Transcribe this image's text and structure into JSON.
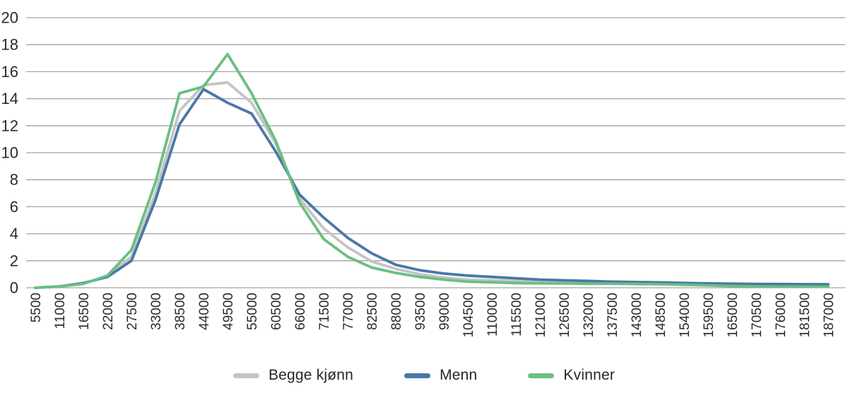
{
  "chart_data": {
    "type": "line",
    "title": "",
    "xlabel": "",
    "ylabel": "",
    "ylim": [
      0,
      20
    ],
    "ytick_step": 2,
    "grid": true,
    "legend_position": "bottom",
    "categories": [
      "5500",
      "11000",
      "16500",
      "22000",
      "27500",
      "33000",
      "38500",
      "44000",
      "49500",
      "55000",
      "60500",
      "66000",
      "71500",
      "77000",
      "82500",
      "88000",
      "93500",
      "99000",
      "104500",
      "110000",
      "115500",
      "121000",
      "126500",
      "132000",
      "137500",
      "143000",
      "148500",
      "154000",
      "159500",
      "165000",
      "170500",
      "176000",
      "181500",
      "187000"
    ],
    "series": [
      {
        "name": "Begge kjønn",
        "color": "#c4c4c4",
        "values": [
          0,
          0.1,
          0.3,
          0.85,
          2.3,
          7.0,
          13.1,
          15.0,
          15.2,
          13.7,
          10.7,
          6.6,
          4.4,
          3.0,
          1.95,
          1.4,
          1.0,
          0.75,
          0.6,
          0.55,
          0.5,
          0.45,
          0.4,
          0.38,
          0.35,
          0.32,
          0.3,
          0.28,
          0.25,
          0.22,
          0.2,
          0.18,
          0.16,
          0.15
        ]
      },
      {
        "name": "Menn",
        "color": "#4a78a8",
        "values": [
          0,
          0.1,
          0.35,
          0.8,
          2.0,
          6.5,
          12.1,
          14.7,
          13.7,
          12.9,
          10.1,
          6.9,
          5.2,
          3.7,
          2.55,
          1.7,
          1.3,
          1.05,
          0.9,
          0.8,
          0.7,
          0.6,
          0.55,
          0.5,
          0.45,
          0.42,
          0.4,
          0.35,
          0.32,
          0.3,
          0.28,
          0.27,
          0.26,
          0.25
        ]
      },
      {
        "name": "Kvinner",
        "color": "#6abf82",
        "values": [
          0,
          0.1,
          0.3,
          0.9,
          2.8,
          7.8,
          14.4,
          14.9,
          17.3,
          14.4,
          10.9,
          6.3,
          3.6,
          2.3,
          1.5,
          1.1,
          0.8,
          0.6,
          0.45,
          0.4,
          0.35,
          0.33,
          0.32,
          0.3,
          0.3,
          0.28,
          0.26,
          0.22,
          0.18,
          0.12,
          0.1,
          0.08,
          0.08,
          0.08
        ]
      }
    ],
    "axis_color": "#a3a3a3",
    "tick_label_color": "#2b2b2b"
  },
  "legend": {
    "items": [
      {
        "label": "Begge kjønn"
      },
      {
        "label": "Menn"
      },
      {
        "label": "Kvinner"
      }
    ]
  }
}
